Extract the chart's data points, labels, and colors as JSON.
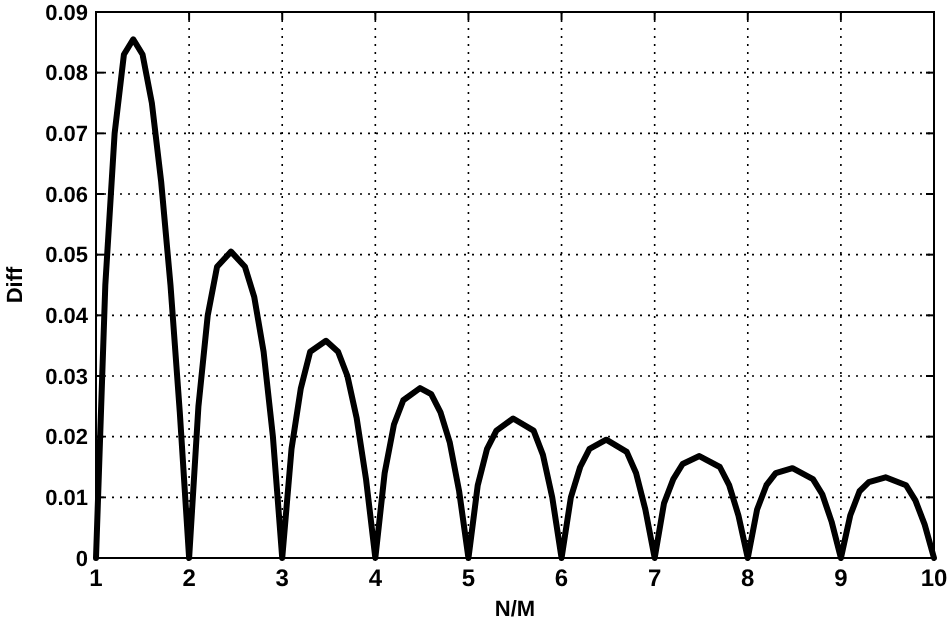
{
  "chart_data": {
    "type": "line",
    "xlabel": "N/M",
    "ylabel": "Diff",
    "xlim": [
      1,
      10
    ],
    "ylim": [
      0,
      0.09
    ],
    "xticks": [
      1,
      2,
      3,
      4,
      5,
      6,
      7,
      8,
      9,
      10
    ],
    "yticks": [
      0,
      0.01,
      0.02,
      0.03,
      0.04,
      0.05,
      0.06,
      0.07,
      0.08,
      0.09
    ],
    "grid": true,
    "line_style": "solid",
    "marker": "none",
    "series": [
      {
        "color": "#000000",
        "x": [
          1,
          1.1,
          1.2,
          1.3,
          1.4,
          1.5,
          1.6,
          1.7,
          1.8,
          1.9,
          2,
          2.1,
          2.2,
          2.3,
          2.45,
          2.6,
          2.7,
          2.8,
          2.9,
          3,
          3.1,
          3.2,
          3.3,
          3.47,
          3.6,
          3.7,
          3.8,
          3.9,
          4,
          4.1,
          4.2,
          4.3,
          4.48,
          4.6,
          4.7,
          4.8,
          4.9,
          5,
          5.1,
          5.2,
          5.3,
          5.48,
          5.7,
          5.8,
          5.9,
          6,
          6.1,
          6.2,
          6.3,
          6.48,
          6.7,
          6.8,
          6.9,
          7,
          7.1,
          7.2,
          7.3,
          7.48,
          7.7,
          7.8,
          7.9,
          8,
          8.1,
          8.2,
          8.3,
          8.48,
          8.7,
          8.8,
          8.9,
          9,
          9.1,
          9.2,
          9.3,
          9.48,
          9.7,
          9.8,
          9.9,
          10
        ],
        "values": [
          0,
          0.045,
          0.07,
          0.083,
          0.0855,
          0.083,
          0.075,
          0.062,
          0.045,
          0.024,
          0,
          0.025,
          0.04,
          0.048,
          0.0505,
          0.048,
          0.043,
          0.034,
          0.02,
          0,
          0.018,
          0.028,
          0.034,
          0.0358,
          0.034,
          0.03,
          0.023,
          0.013,
          0,
          0.014,
          0.022,
          0.026,
          0.028,
          0.027,
          0.024,
          0.019,
          0.011,
          0,
          0.012,
          0.018,
          0.021,
          0.023,
          0.021,
          0.017,
          0.01,
          0,
          0.01,
          0.015,
          0.018,
          0.0195,
          0.0175,
          0.014,
          0.008,
          0,
          0.009,
          0.013,
          0.0155,
          0.0168,
          0.015,
          0.012,
          0.007,
          0,
          0.008,
          0.012,
          0.014,
          0.0148,
          0.013,
          0.0105,
          0.006,
          0,
          0.007,
          0.011,
          0.0125,
          0.0133,
          0.012,
          0.0095,
          0.0055,
          0
        ]
      }
    ]
  }
}
